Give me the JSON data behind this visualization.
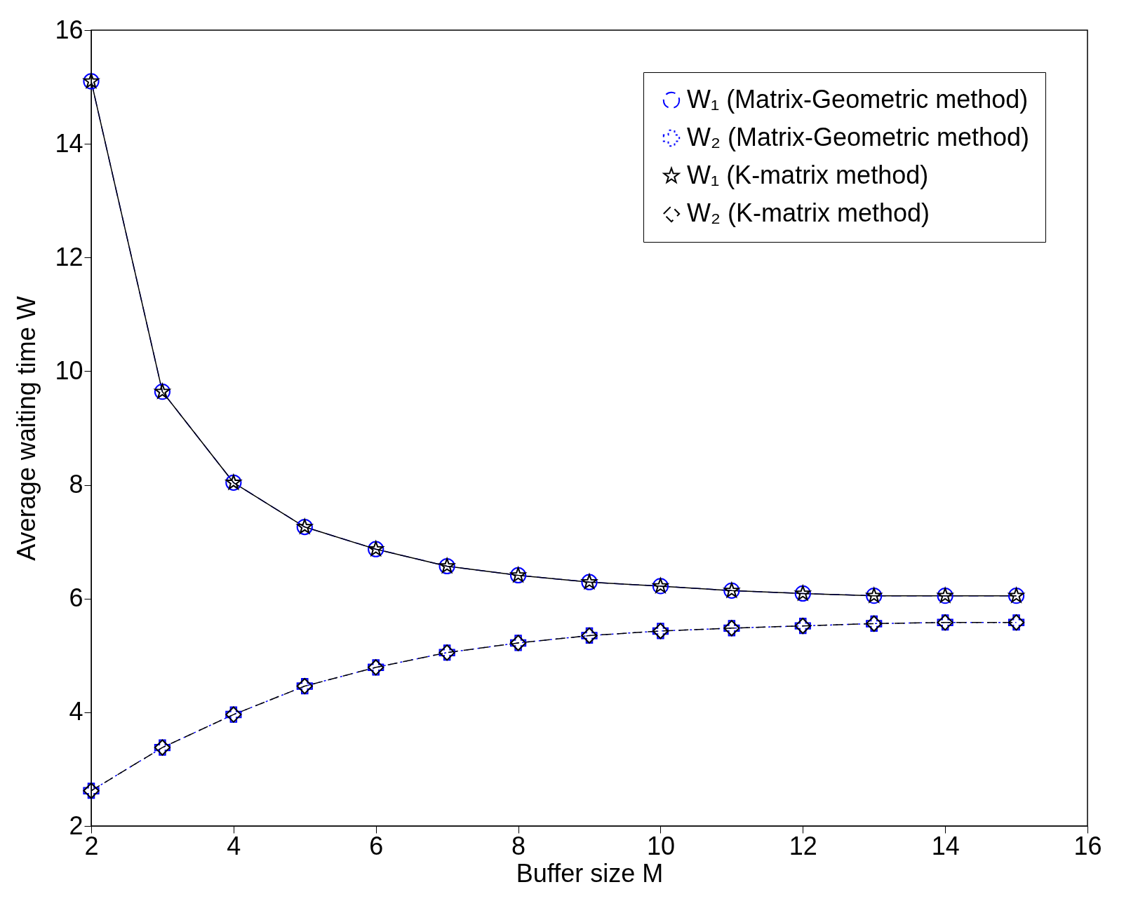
{
  "chart_data": {
    "type": "line",
    "xlabel": "Buffer size M",
    "ylabel": "Average waiting time W",
    "x": [
      2,
      3,
      4,
      5,
      6,
      7,
      8,
      9,
      10,
      11,
      12,
      13,
      14,
      15
    ],
    "xlim": [
      2,
      16
    ],
    "xticks": [
      2,
      4,
      6,
      8,
      10,
      12,
      14,
      16
    ],
    "ylim": [
      2,
      16
    ],
    "yticks": [
      2,
      4,
      6,
      8,
      10,
      12,
      14,
      16
    ],
    "grid": false,
    "legend": "top right",
    "series": [
      {
        "name": "W₁ (Matrix-Geometric method)",
        "color": "#0000ff",
        "marker": "circle",
        "line_style": "dashed",
        "values": [
          15.1,
          9.64,
          8.04,
          7.26,
          6.87,
          6.57,
          6.41,
          6.29,
          6.22,
          6.14,
          6.09,
          6.05,
          6.05,
          6.05
        ]
      },
      {
        "name": "W₂ (Matrix-Geometric method)",
        "color": "#0000ff",
        "marker": "cross",
        "line_style": "dotted",
        "values": [
          2.62,
          3.38,
          3.96,
          4.46,
          4.79,
          5.05,
          5.22,
          5.35,
          5.43,
          5.48,
          5.52,
          5.56,
          5.58,
          5.58
        ]
      },
      {
        "name": "W₁ (K-matrix method)",
        "color": "#000000",
        "marker": "star",
        "line_style": "solid",
        "values": [
          15.1,
          9.64,
          8.04,
          7.26,
          6.87,
          6.57,
          6.41,
          6.29,
          6.22,
          6.14,
          6.09,
          6.05,
          6.05,
          6.05
        ]
      },
      {
        "name": "W₂ (K-matrix method)",
        "color": "#000000",
        "marker": "diamond",
        "line_style": "dashed",
        "values": [
          2.62,
          3.38,
          3.96,
          4.46,
          4.79,
          5.05,
          5.22,
          5.35,
          5.43,
          5.48,
          5.52,
          5.56,
          5.58,
          5.58
        ]
      }
    ]
  }
}
